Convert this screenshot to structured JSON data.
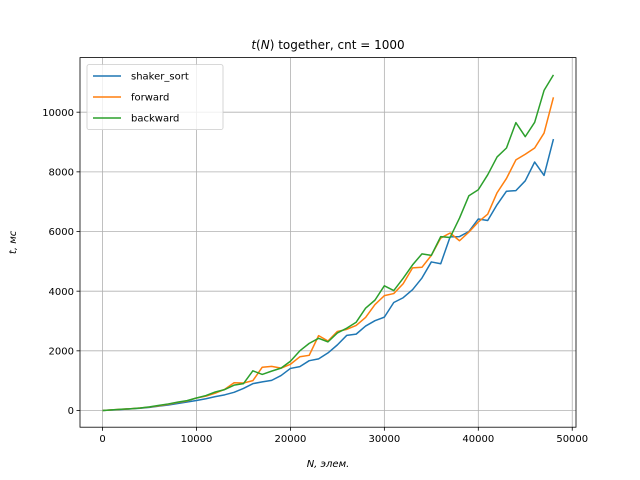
{
  "chart_data": {
    "type": "line",
    "title": "t(N) together, cnt = 1000",
    "xlabel": "N, элем.",
    "ylabel": "t, мс",
    "xlim": [
      -2400,
      50400
    ],
    "ylim": [
      -560,
      11830
    ],
    "xticks": [
      0,
      10000,
      20000,
      30000,
      40000,
      50000
    ],
    "yticks": [
      0,
      2000,
      4000,
      6000,
      8000,
      10000
    ],
    "grid": true,
    "legend_position": "top-left",
    "x": [
      0,
      1000,
      2000,
      3000,
      4000,
      5000,
      6000,
      7000,
      8000,
      9000,
      10000,
      11000,
      12000,
      13000,
      14000,
      15000,
      16000,
      17000,
      18000,
      19000,
      20000,
      21000,
      22000,
      23000,
      24000,
      25000,
      26000,
      27000,
      28000,
      29000,
      30000,
      31000,
      32000,
      33000,
      34000,
      35000,
      36000,
      37000,
      38000,
      39000,
      40000,
      41000,
      42000,
      43000,
      44000,
      45000,
      46000,
      47000,
      48000
    ],
    "series": [
      {
        "name": "shaker_sort",
        "color": "#1f77b4",
        "values": [
          0,
          15,
          35,
          55,
          75,
          105,
          145,
          185,
          235,
          285,
          335,
          395,
          465,
          525,
          610,
          740,
          900,
          960,
          1010,
          1170,
          1410,
          1470,
          1670,
          1730,
          1930,
          2200,
          2520,
          2560,
          2830,
          3010,
          3130,
          3620,
          3780,
          4050,
          4440,
          4980,
          4920,
          5820,
          5830,
          6000,
          6420,
          6370,
          6900,
          7350,
          7370,
          7700,
          8330,
          7880,
          9100
        ]
      },
      {
        "name": "forward",
        "color": "#ff7f0e",
        "values": [
          0,
          20,
          40,
          60,
          85,
          115,
          160,
          210,
          270,
          320,
          420,
          480,
          580,
          710,
          930,
          920,
          1000,
          1450,
          1480,
          1420,
          1550,
          1800,
          1850,
          2510,
          2330,
          2650,
          2720,
          2850,
          3120,
          3550,
          3850,
          3920,
          4250,
          4780,
          4800,
          5200,
          5780,
          5950,
          5690,
          5980,
          6320,
          6580,
          7300,
          7780,
          8400,
          8590,
          8800,
          9300,
          10500
        ]
      },
      {
        "name": "backward",
        "color": "#2ca02c",
        "values": [
          0,
          20,
          40,
          60,
          85,
          120,
          170,
          220,
          280,
          330,
          420,
          500,
          620,
          700,
          850,
          900,
          1330,
          1210,
          1320,
          1420,
          1650,
          2000,
          2250,
          2420,
          2300,
          2600,
          2760,
          2960,
          3430,
          3700,
          4180,
          4020,
          4430,
          4880,
          5250,
          5200,
          5830,
          5800,
          6450,
          7200,
          7400,
          7900,
          8500,
          8800,
          9650,
          9180,
          9660,
          10730,
          11250
        ]
      }
    ]
  }
}
